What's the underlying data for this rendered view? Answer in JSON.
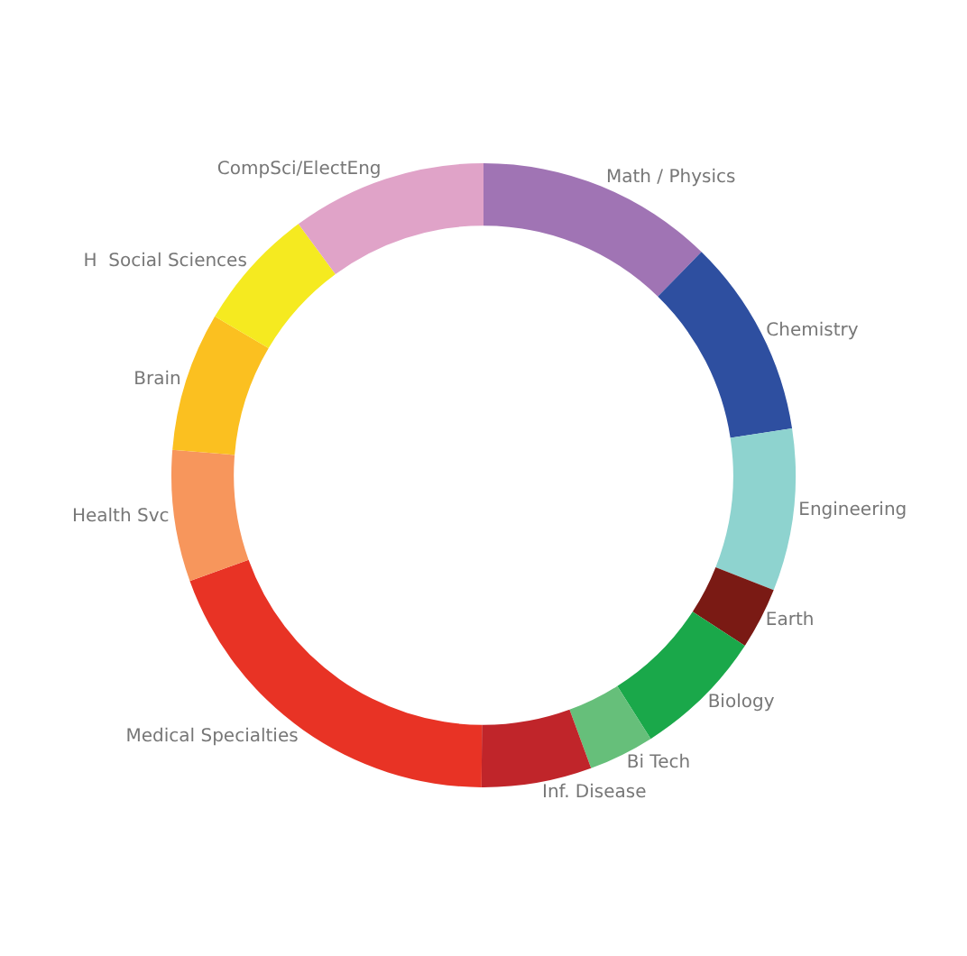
{
  "chart_data": {
    "type": "donut",
    "categories": [
      "Math / Physics",
      "Chemistry",
      "Engineering",
      "Earth",
      "Biology",
      "Bi Tech",
      "Inf. Disease",
      "Medical Specialties",
      "Health Svc",
      "Brain",
      "H  Social Sciences",
      "CompSci/ElectEng"
    ],
    "values": [
      12.3,
      10.3,
      8.4,
      3.2,
      6.8,
      3.4,
      5.7,
      19.4,
      6.8,
      7.2,
      6.4,
      10.1
    ],
    "colors": [
      "#a074b4",
      "#2e4fa0",
      "#8ed3cf",
      "#7a1a14",
      "#1aa84a",
      "#66bf7a",
      "#c0252a",
      "#e83325",
      "#f7965c",
      "#fbc020",
      "#f5ea20",
      "#e0a3c8"
    ],
    "legend": false
  }
}
